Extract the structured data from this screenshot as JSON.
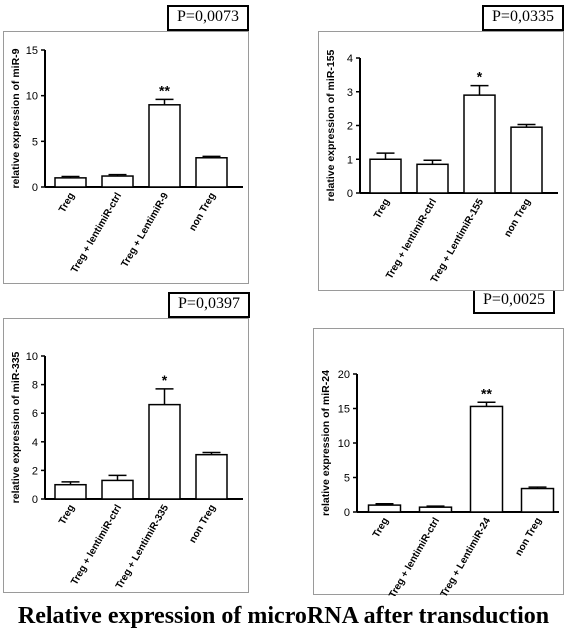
{
  "caption": "Relative expression of microRNA after transduction",
  "colors": {
    "bar_fill": "#ffffff",
    "bar_stroke": "#000000",
    "axis": "#000000"
  },
  "chart_data": [
    {
      "type": "bar",
      "pvalue": "P=0,0073",
      "ylabel": "relative expression of miR-9",
      "ylim": [
        0,
        15
      ],
      "yticks": [
        0,
        5,
        10,
        15
      ],
      "categories": [
        "Treg",
        "Treg + lentimiR-ctrl",
        "Treg + LentimiR-9",
        "non Treg"
      ],
      "values": [
        1.0,
        1.2,
        9.0,
        3.2
      ],
      "errors": [
        0.15,
        0.15,
        0.6,
        0.15
      ],
      "stars": [
        "",
        "",
        "**",
        ""
      ]
    },
    {
      "type": "bar",
      "pvalue": "P=0,0335",
      "ylabel": "relative expression of miR-155",
      "ylim": [
        0,
        4
      ],
      "yticks": [
        0,
        1,
        2,
        3,
        4
      ],
      "categories": [
        "Treg",
        "Treg + lentimiR-ctrl",
        "Treg + LentimiR-155",
        "non Treg"
      ],
      "values": [
        1.0,
        0.85,
        2.9,
        1.95
      ],
      "errors": [
        0.18,
        0.12,
        0.28,
        0.08
      ],
      "stars": [
        "",
        "",
        "*",
        ""
      ]
    },
    {
      "type": "bar",
      "pvalue": "P=0,0397",
      "ylabel": "relative expression of miR-335",
      "ylim": [
        0,
        10
      ],
      "yticks": [
        0,
        2,
        4,
        6,
        8,
        10
      ],
      "categories": [
        "Treg",
        "Treg + lentimiR-ctrl",
        "Treg + LentimiR-335",
        "non Treg"
      ],
      "values": [
        1.0,
        1.3,
        6.6,
        3.1
      ],
      "errors": [
        0.2,
        0.35,
        1.1,
        0.15
      ],
      "stars": [
        "",
        "",
        "*",
        ""
      ]
    },
    {
      "type": "bar",
      "pvalue": "P=0,0025",
      "ylabel": "relative expression of miR-24",
      "ylim": [
        0,
        20
      ],
      "yticks": [
        0,
        5,
        10,
        15,
        20
      ],
      "categories": [
        "Treg",
        "Treg + lentimiR-ctrl",
        "Treg + LentimiR-24",
        "non Treg"
      ],
      "values": [
        1.0,
        0.7,
        15.3,
        3.4
      ],
      "errors": [
        0.2,
        0.15,
        0.6,
        0.2
      ],
      "stars": [
        "",
        "",
        "**",
        ""
      ]
    }
  ]
}
